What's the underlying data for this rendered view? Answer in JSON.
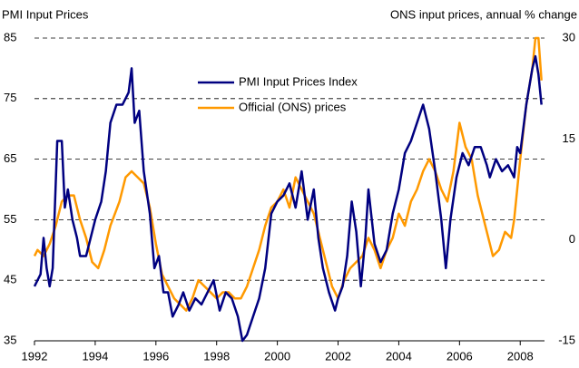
{
  "chart_data": {
    "type": "line",
    "y_label": "PMI Input Prices",
    "y2_label": "ONS input prices, annual % change",
    "xlim": [
      1992,
      2008.8
    ],
    "xticks": [
      1992,
      1994,
      1996,
      1998,
      2000,
      2002,
      2004,
      2006,
      2008
    ],
    "ylim": [
      35,
      85
    ],
    "yticks": [
      35,
      45,
      55,
      65,
      75,
      85
    ],
    "y2lim": [
      -15,
      30
    ],
    "y2ticks": [
      -15,
      0,
      15,
      30
    ],
    "grid": true,
    "legend": "top",
    "series": [
      {
        "name": "PMI Input Prices Index",
        "color": "#000080",
        "x": [
          1992.0,
          1992.2,
          1992.3,
          1992.4,
          1992.5,
          1992.6,
          1992.75,
          1992.9,
          1993.0,
          1993.1,
          1993.25,
          1993.4,
          1993.5,
          1993.7,
          1993.85,
          1994.0,
          1994.2,
          1994.35,
          1994.5,
          1994.7,
          1994.9,
          1995.1,
          1995.2,
          1995.3,
          1995.45,
          1995.6,
          1995.8,
          1995.95,
          1996.1,
          1996.25,
          1996.4,
          1996.55,
          1996.75,
          1996.9,
          1997.1,
          1997.3,
          1997.5,
          1997.7,
          1997.9,
          1998.1,
          1998.3,
          1998.5,
          1998.7,
          1998.85,
          1999.0,
          1999.2,
          1999.4,
          1999.6,
          1999.8,
          2000.0,
          2000.2,
          2000.4,
          2000.6,
          2000.8,
          2001.0,
          2001.2,
          2001.35,
          2001.5,
          2001.7,
          2001.9,
          2002.0,
          2002.15,
          2002.3,
          2002.45,
          2002.6,
          2002.75,
          2002.9,
          2003.0,
          2003.2,
          2003.4,
          2003.6,
          2003.8,
          2004.0,
          2004.2,
          2004.4,
          2004.6,
          2004.8,
          2005.0,
          2005.2,
          2005.4,
          2005.55,
          2005.7,
          2005.9,
          2006.1,
          2006.3,
          2006.5,
          2006.7,
          2006.9,
          2007.0,
          2007.2,
          2007.4,
          2007.6,
          2007.8,
          2007.9,
          2008.0,
          2008.2,
          2008.4,
          2008.5,
          2008.6,
          2008.7
        ],
        "values": [
          44,
          46,
          52,
          47,
          44,
          47,
          68,
          68,
          57,
          60,
          55,
          52,
          49,
          49,
          52,
          55,
          58,
          63,
          71,
          74,
          74,
          76,
          80,
          71,
          73,
          63,
          56,
          47,
          49,
          43,
          43,
          39,
          41,
          43,
          40,
          42,
          41,
          43,
          45,
          40,
          43,
          42,
          39,
          35,
          36,
          39,
          42,
          47,
          56,
          58,
          59,
          61,
          57,
          63,
          55,
          60,
          52,
          47,
          43,
          40,
          42,
          44,
          49,
          58,
          53,
          44,
          52,
          60,
          51,
          48,
          50,
          56,
          60,
          66,
          68,
          71,
          74,
          70,
          63,
          55,
          47,
          55,
          62,
          66,
          64,
          67,
          67,
          64,
          62,
          65,
          63,
          64,
          62,
          67,
          66,
          74,
          80,
          82,
          79,
          74
        ]
      },
      {
        "name": "Official (ONS) prices",
        "color": "#ff9900",
        "axis": "y2",
        "x": [
          1992.0,
          1992.1,
          1992.3,
          1992.5,
          1992.7,
          1992.9,
          1993.1,
          1993.3,
          1993.5,
          1993.7,
          1993.9,
          1994.1,
          1994.3,
          1994.5,
          1994.8,
          1995.0,
          1995.2,
          1995.4,
          1995.6,
          1995.8,
          1996.0,
          1996.2,
          1996.4,
          1996.6,
          1996.8,
          1997.0,
          1997.2,
          1997.4,
          1997.6,
          1997.8,
          1998.0,
          1998.2,
          1998.4,
          1998.6,
          1998.8,
          1999.0,
          1999.2,
          1999.4,
          1999.6,
          1999.8,
          2000.0,
          2000.2,
          2000.4,
          2000.6,
          2000.8,
          2001.0,
          2001.2,
          2001.4,
          2001.6,
          2001.8,
          2002.0,
          2002.2,
          2002.4,
          2002.6,
          2002.8,
          2003.0,
          2003.2,
          2003.4,
          2003.6,
          2003.8,
          2004.0,
          2004.2,
          2004.4,
          2004.6,
          2004.8,
          2005.0,
          2005.2,
          2005.4,
          2005.6,
          2005.8,
          2006.0,
          2006.2,
          2006.4,
          2006.6,
          2006.8,
          2007.0,
          2007.1,
          2007.3,
          2007.5,
          2007.7,
          2007.8,
          2008.0,
          2008.2,
          2008.4,
          2008.5,
          2008.6,
          2008.7
        ],
        "values": [
          -2.4,
          -1.5,
          -2.4,
          -0.6,
          2.1,
          5.7,
          6.6,
          6.6,
          3.0,
          0.3,
          -3.3,
          -4.2,
          -1.5,
          2.1,
          5.7,
          9.3,
          10.2,
          9.3,
          8.4,
          4.8,
          -0.6,
          -5.1,
          -6.9,
          -8.7,
          -9.6,
          -10.5,
          -8.7,
          -6.0,
          -6.9,
          -7.8,
          -8.7,
          -7.8,
          -7.8,
          -8.7,
          -8.7,
          -6.9,
          -4.2,
          -1.5,
          2.1,
          4.8,
          5.7,
          7.5,
          4.8,
          9.3,
          7.5,
          5.7,
          3.9,
          0.3,
          -3.3,
          -6.9,
          -8.7,
          -6.0,
          -4.2,
          -3.3,
          -2.4,
          0.3,
          -1.5,
          -4.2,
          -1.5,
          0.3,
          3.9,
          2.1,
          5.7,
          7.5,
          10.2,
          12.0,
          10.2,
          7.5,
          5.7,
          10.2,
          17.4,
          13.8,
          12.0,
          6.6,
          3.0,
          -0.6,
          -2.4,
          -1.5,
          1.2,
          0.3,
          3.0,
          12.0,
          20.1,
          25.5,
          30.0,
          30.0,
          23.7
        ]
      }
    ]
  }
}
